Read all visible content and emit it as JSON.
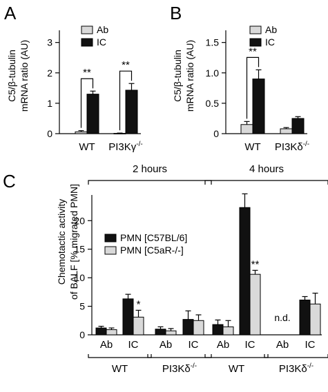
{
  "colors": {
    "dark": "#111111",
    "light": "#d9d9d9",
    "axis": "#000000"
  },
  "chart_data": [
    {
      "panel": "A",
      "type": "bar",
      "ylabel_lines": [
        "C5/β-tubulin",
        "mRNA ratio (AU)"
      ],
      "ylim": [
        0,
        3.4
      ],
      "yticks": [
        0,
        1,
        2,
        3
      ],
      "ytick_labels": [
        "0",
        "1",
        "2",
        "3"
      ],
      "categories": [
        "WT",
        "PI3Kγ"
      ],
      "category_superscripts": [
        "",
        "-/-"
      ],
      "series": [
        {
          "name": "Ab",
          "values": [
            0.06,
            0.01
          ],
          "errors": [
            0.04,
            0.01
          ]
        },
        {
          "name": "IC",
          "values": [
            1.3,
            1.43
          ],
          "errors": [
            0.1,
            0.22
          ]
        }
      ],
      "legend_position": "top-center",
      "significance": [
        {
          "category": 0,
          "label": "**"
        },
        {
          "category": 1,
          "label": "**"
        }
      ]
    },
    {
      "panel": "B",
      "type": "bar",
      "ylabel_lines": [
        "C5/β-tubulin",
        "mRNA ratio (AU)"
      ],
      "ylim": [
        0,
        1.7
      ],
      "yticks": [
        0,
        0.5,
        1.0,
        1.5
      ],
      "ytick_labels": [
        "0",
        "0.5",
        "1.0",
        "1.5"
      ],
      "categories": [
        "WT",
        "PI3Kδ"
      ],
      "category_superscripts": [
        "",
        "-/-"
      ],
      "series": [
        {
          "name": "Ab",
          "values": [
            0.15,
            0.08
          ],
          "errors": [
            0.05,
            0.02
          ]
        },
        {
          "name": "IC",
          "values": [
            0.9,
            0.25
          ],
          "errors": [
            0.15,
            0.03
          ]
        }
      ],
      "legend_position": "top-right",
      "significance": [
        {
          "category": 0,
          "label": "**"
        }
      ]
    },
    {
      "panel": "C",
      "type": "bar",
      "ylabel_lines": [
        "Chemotactic activity",
        "of BALF [% migrated PMN]"
      ],
      "ylim": [
        0,
        24.5
      ],
      "yticks": [
        0,
        5,
        10,
        15,
        20
      ],
      "ytick_labels": [
        "0",
        "5",
        "10",
        "15",
        "20"
      ],
      "time_groups": [
        "2 hours",
        "4 hours"
      ],
      "genotype_groups": [
        {
          "label": "WT",
          "superscript": ""
        },
        {
          "label": "PI3Kδ",
          "superscript": "-/-"
        },
        {
          "label": "WT",
          "superscript": ""
        },
        {
          "label": "PI3Kδ",
          "superscript": "-/-"
        }
      ],
      "categories": [
        "Ab",
        "IC",
        "Ab",
        "IC",
        "Ab",
        "IC",
        "Ab",
        "IC"
      ],
      "series": [
        {
          "name": "PMN [C57BL/6]",
          "values": [
            1.2,
            6.3,
            1.0,
            2.7,
            1.8,
            22.3,
            null,
            6.1
          ],
          "errors": [
            0.3,
            0.8,
            0.4,
            1.5,
            0.8,
            2.4,
            null,
            0.6
          ]
        },
        {
          "name": "PMN [C5aR-/-]",
          "values": [
            0.9,
            3.1,
            0.7,
            2.5,
            1.4,
            10.6,
            null,
            5.4
          ],
          "errors": [
            0.3,
            1.2,
            0.4,
            1.0,
            1.1,
            0.7,
            null,
            1.9
          ]
        }
      ],
      "legend_position": "middle-left",
      "not_determined": {
        "category": 6,
        "label": "n.d."
      },
      "significance": [
        {
          "category": 1,
          "series": 1,
          "label": "*"
        },
        {
          "category": 5,
          "series": 1,
          "label": "**"
        }
      ]
    }
  ]
}
